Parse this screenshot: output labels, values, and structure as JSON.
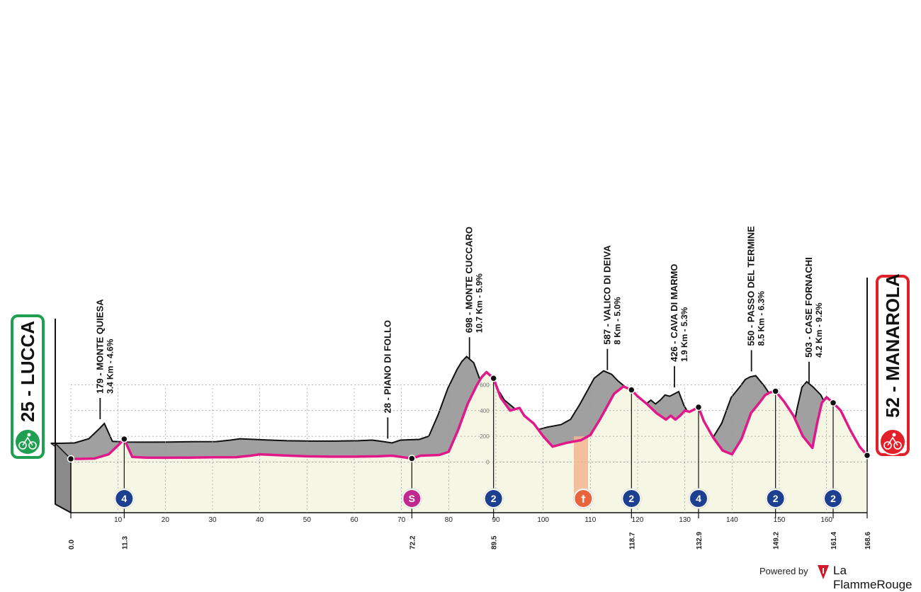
{
  "chart_data": {
    "type": "area",
    "title": "",
    "xlabel": "",
    "ylabel": "",
    "xlim": [
      0,
      168.6
    ],
    "ylim": [
      0,
      800
    ],
    "x_ticks": [
      "0",
      "10",
      "20",
      "30",
      "40",
      "50",
      "60",
      "70",
      "80",
      "90",
      "100",
      "110",
      "120",
      "130",
      "140",
      "150",
      "160"
    ],
    "y_ticks": [
      "0",
      "200",
      "400",
      "600"
    ],
    "start": {
      "label": "25 - LUCCA",
      "elevation_m": 25,
      "km": 0.0
    },
    "finish": {
      "label": "52 - MANAROLA",
      "elevation_m": 52,
      "km": 168.6
    },
    "profile": {
      "x": [
        0,
        2,
        5,
        8,
        10,
        11.3,
        13,
        16,
        20,
        25,
        30,
        35,
        38,
        40,
        45,
        50,
        55,
        60,
        65,
        68,
        70,
        72.2,
        74,
        78,
        80,
        82,
        84,
        86,
        87,
        88,
        89.5,
        91,
        93,
        95,
        96,
        98,
        100,
        102,
        105,
        108,
        110,
        112,
        115,
        117,
        118.7,
        120,
        122,
        124,
        126,
        127,
        128,
        129,
        130,
        131,
        132.9,
        134,
        136,
        138,
        140,
        142,
        144,
        146,
        147,
        148,
        149.2,
        151,
        153,
        155,
        157,
        158,
        159,
        160,
        161.4,
        163,
        165,
        167,
        168.6
      ],
      "y": [
        25,
        25,
        28,
        60,
        130,
        179,
        40,
        35,
        34,
        35,
        37,
        38,
        50,
        60,
        52,
        45,
        42,
        42,
        45,
        50,
        40,
        28,
        50,
        55,
        80,
        250,
        450,
        600,
        660,
        698,
        650,
        500,
        400,
        420,
        360,
        300,
        200,
        120,
        150,
        170,
        210,
        330,
        530,
        587,
        560,
        510,
        450,
        380,
        330,
        360,
        330,
        360,
        400,
        390,
        426,
        320,
        190,
        90,
        60,
        180,
        380,
        470,
        520,
        540,
        550,
        470,
        360,
        200,
        110,
        300,
        460,
        503,
        460,
        400,
        250,
        120,
        52
      ]
    },
    "climbs": [
      {
        "name": "179 - MONTE QUIESA",
        "detail": "3.4 Km - 4.6%",
        "km": 11.3,
        "cat": "4",
        "km_label": "11.3"
      },
      {
        "name": "698 - MONTE CUCCARO",
        "detail": "10.7 Km - 5.9%",
        "km": 89.5,
        "cat": "2",
        "km_label": "89.5"
      },
      {
        "name": "587 - VALICO DI DEIVA",
        "detail": "8 Km - 5.0%",
        "km": 118.7,
        "cat": "2",
        "km_label": "118.7"
      },
      {
        "name": "426 - CAVA DI MARMO",
        "detail": "1.9 Km - 5.3%",
        "km": 132.9,
        "cat": "4",
        "km_label": "132.9"
      },
      {
        "name": "550 - PASSO DEL TERMINE",
        "detail": "8.5 Km - 6.3%",
        "km": 149.2,
        "cat": "2",
        "km_label": "149.2"
      },
      {
        "name": "503 - CASE FORNACHI",
        "detail": "4.2 Km - 9.2%",
        "km": 161.4,
        "cat": "2",
        "km_label": "161.4"
      }
    ],
    "sprint": {
      "name": "28 - PIANO DI FOLLO",
      "km": 72.2,
      "symbol": "S",
      "km_label": "72.2"
    },
    "feed_zone": {
      "km_start": 106.5,
      "km_end": 109.5,
      "km_icon": 108.5
    },
    "km_markers": [
      "0.0",
      "168.6"
    ],
    "colors": {
      "route_line": "#e0198a",
      "terrain_fill": "#f5f6e4",
      "shadow": "#a0a0a0",
      "start_green": "#1fa050",
      "finish_red": "#e2202a",
      "climb_badge": "#1d3f8f",
      "sprint_badge": "#c0288f",
      "feed_zone": "#f2b591"
    }
  },
  "branding": {
    "powered_by": "Powered by",
    "brand_name": "La FlammeRouge"
  }
}
